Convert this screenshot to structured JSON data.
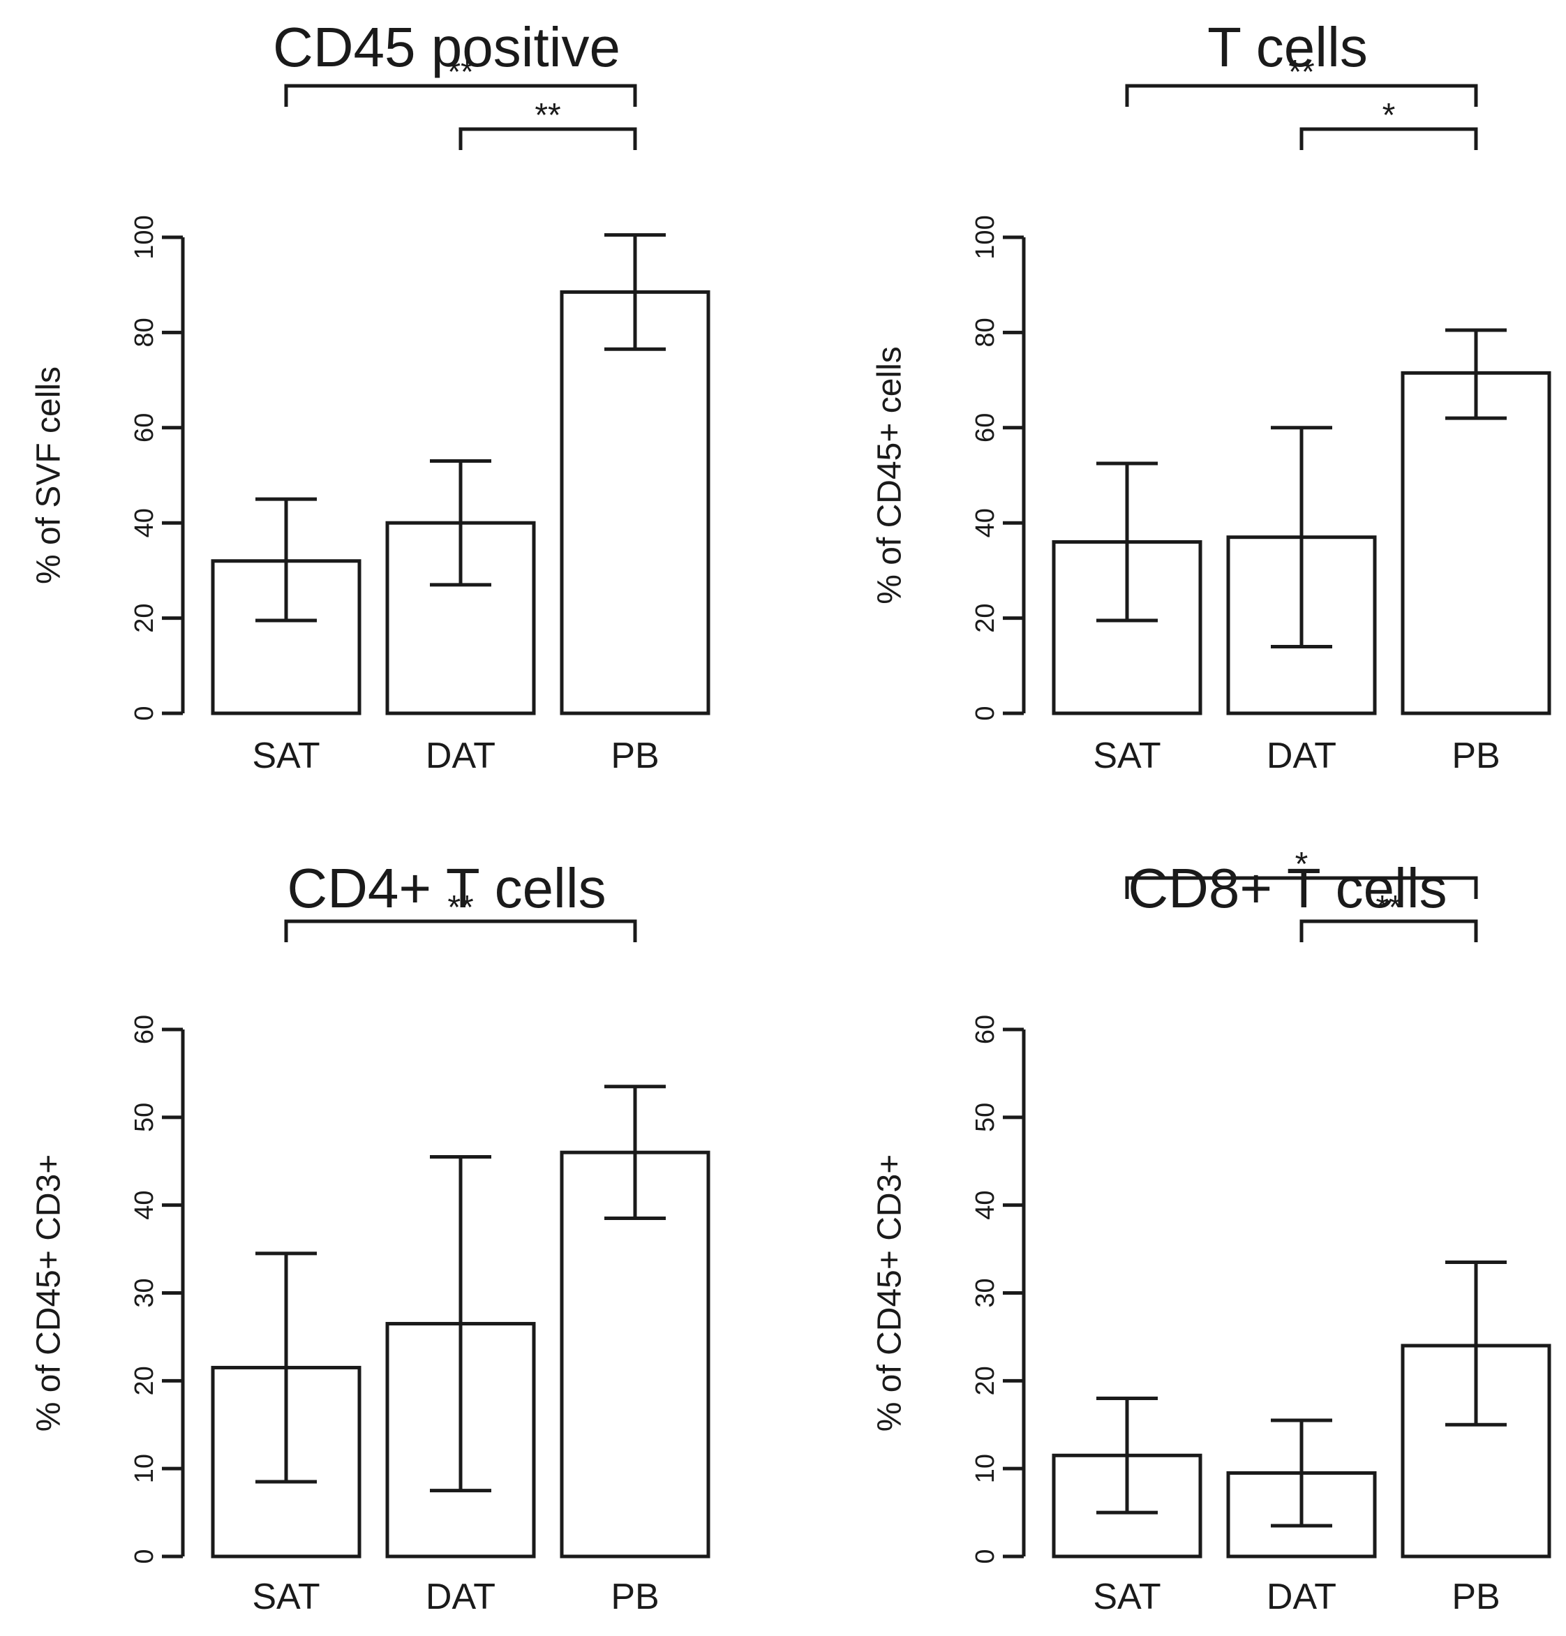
{
  "colors": {
    "ink": "#1a1a1a",
    "bar_fill": "#ffffff"
  },
  "chart_data": [
    {
      "type": "bar",
      "title": "CD45 positive",
      "ylabel": "% of SVF cells",
      "xlabel": "",
      "categories": [
        "SAT",
        "DAT",
        "PB"
      ],
      "values": [
        32,
        40,
        88.5
      ],
      "error_low": [
        19.5,
        27,
        76.5
      ],
      "error_high": [
        45,
        53,
        100.5
      ],
      "ylim": [
        0,
        100
      ],
      "yticks": [
        0,
        20,
        40,
        60,
        80,
        100
      ],
      "significance": [
        {
          "from": "SAT",
          "to": "PB",
          "label": "**"
        },
        {
          "from": "DAT",
          "to": "PB",
          "label": "**"
        }
      ]
    },
    {
      "type": "bar",
      "title": "T cells",
      "ylabel": "% of CD45+ cells",
      "xlabel": "",
      "categories": [
        "SAT",
        "DAT",
        "PB"
      ],
      "values": [
        36,
        37,
        71.5
      ],
      "error_low": [
        19.5,
        14,
        62
      ],
      "error_high": [
        52.5,
        60,
        80.5
      ],
      "ylim": [
        0,
        100
      ],
      "yticks": [
        0,
        20,
        40,
        60,
        80,
        100
      ],
      "significance": [
        {
          "from": "SAT",
          "to": "PB",
          "label": "**"
        },
        {
          "from": "DAT",
          "to": "PB",
          "label": "*"
        }
      ]
    },
    {
      "type": "bar",
      "title": "CD4+ T cells",
      "ylabel": "% of CD45+ CD3+",
      "xlabel": "",
      "categories": [
        "SAT",
        "DAT",
        "PB"
      ],
      "values": [
        21.5,
        26.5,
        46
      ],
      "error_low": [
        8.5,
        7.5,
        38.5
      ],
      "error_high": [
        34.5,
        45.5,
        53.5
      ],
      "ylim": [
        0,
        60
      ],
      "yticks": [
        0,
        10,
        20,
        30,
        40,
        50,
        60
      ],
      "significance": [
        {
          "from": "SAT",
          "to": "PB",
          "label": "**"
        }
      ]
    },
    {
      "type": "bar",
      "title": "CD8+ T cells",
      "ylabel": "% of CD45+ CD3+",
      "xlabel": "",
      "categories": [
        "SAT",
        "DAT",
        "PB"
      ],
      "values": [
        11.5,
        9.5,
        24
      ],
      "error_low": [
        5,
        3.5,
        15
      ],
      "error_high": [
        18,
        15.5,
        33.5
      ],
      "ylim": [
        0,
        60
      ],
      "yticks": [
        0,
        10,
        20,
        30,
        40,
        50,
        60
      ],
      "significance": [
        {
          "from": "SAT",
          "to": "PB",
          "label": "*"
        },
        {
          "from": "DAT",
          "to": "PB",
          "label": "**"
        }
      ]
    }
  ]
}
